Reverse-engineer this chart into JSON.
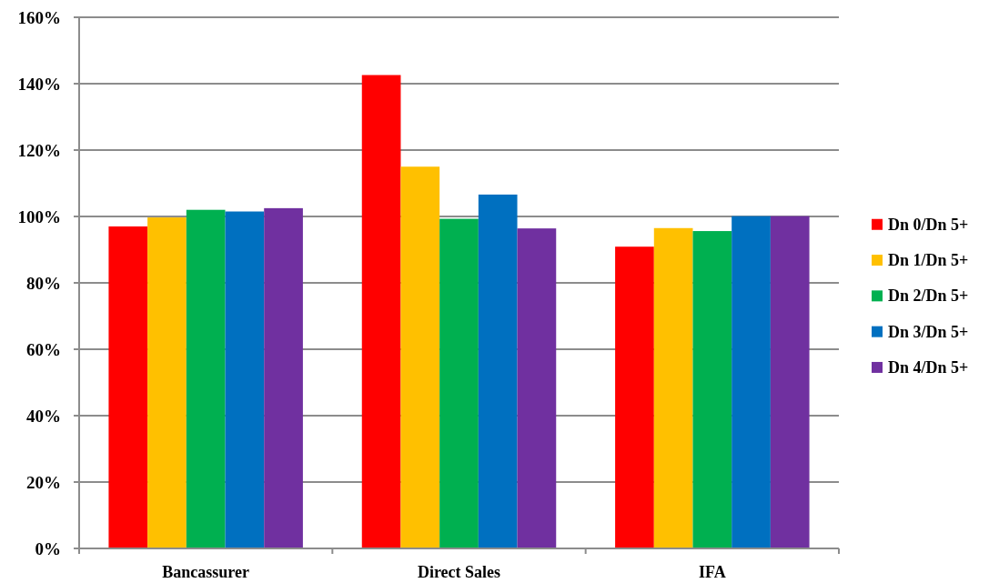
{
  "chart_data": {
    "type": "bar",
    "categories": [
      "Bancassurer",
      "Direct Sales",
      "IFA"
    ],
    "series": [
      {
        "name": "Dn 0/Dn 5+",
        "color": "#ff0000",
        "values": [
          97,
          142.6,
          90.9
        ]
      },
      {
        "name": "Dn 1/Dn 5+",
        "color": "#ffc000",
        "values": [
          99.7,
          115,
          96.5
        ]
      },
      {
        "name": "Dn 2/Dn 5+",
        "color": "#00b050",
        "values": [
          102,
          99.3,
          95.6
        ]
      },
      {
        "name": "Dn 3/Dn 5+",
        "color": "#0070c0",
        "values": [
          101.5,
          106.6,
          100.1
        ]
      },
      {
        "name": "Dn 4/Dn 5+",
        "color": "#7030a0",
        "values": [
          102.5,
          96.4,
          100.1
        ]
      }
    ],
    "ylim": [
      0,
      160
    ],
    "yticks": [
      {
        "value": 0,
        "label": "0%"
      },
      {
        "value": 20,
        "label": "20%"
      },
      {
        "value": 40,
        "label": "40%"
      },
      {
        "value": 60,
        "label": "60%"
      },
      {
        "value": 80,
        "label": "80%"
      },
      {
        "value": 100,
        "label": "100%"
      },
      {
        "value": 120,
        "label": "120%"
      },
      {
        "value": 140,
        "label": "140%"
      },
      {
        "value": 160,
        "label": "160%"
      }
    ],
    "grid": "y",
    "legend": "right"
  }
}
